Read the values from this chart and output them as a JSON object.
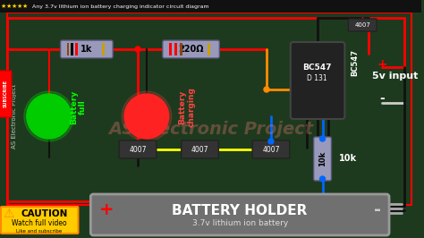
{
  "title": "Any 3.7v lithium ion battery charging indicator circuit diagram",
  "bg_color": "#1a1a2e",
  "circuit_bg": "#1e3a1e",
  "stars_color": "#FFD700",
  "title_color": "#ffffff",
  "red_wire_color": "#ff0000",
  "black_wire_color": "#111111",
  "orange_wire_color": "#ff8c00",
  "blue_wire_color": "#0066ff",
  "yellow_wire_color": "#ffff00",
  "green_led_color": "#00cc00",
  "red_led_color": "#ff2222",
  "resistor_color": "#8888aa",
  "battery_holder_bg": "#666666",
  "battery_text": "BATTERY HOLDER",
  "battery_sub": "3.7v lithium ion battery",
  "label_1k": "1k",
  "label_220": "220Ω",
  "label_bc547": "BC547",
  "label_bc547_sub": "D 131",
  "label_4007_top": "4007",
  "label_4007_1": "4007",
  "label_4007_2": "4007",
  "label_4007_3": "4007",
  "label_10k": "10k",
  "label_5v": "5v input",
  "label_plus": "+",
  "label_minus": "-",
  "label_bat_plus": "+",
  "label_bat_minus": "-",
  "label_battery_full": "Battery\nfull",
  "label_battery_charging": "Battery\ncharging",
  "caution_text": "CAUTION",
  "watch_text": "Watch full video",
  "subscribe_text": "Like and subscribe",
  "watermark": "AS Electronic Project",
  "figsize": [
    4.74,
    2.66
  ],
  "dpi": 100
}
